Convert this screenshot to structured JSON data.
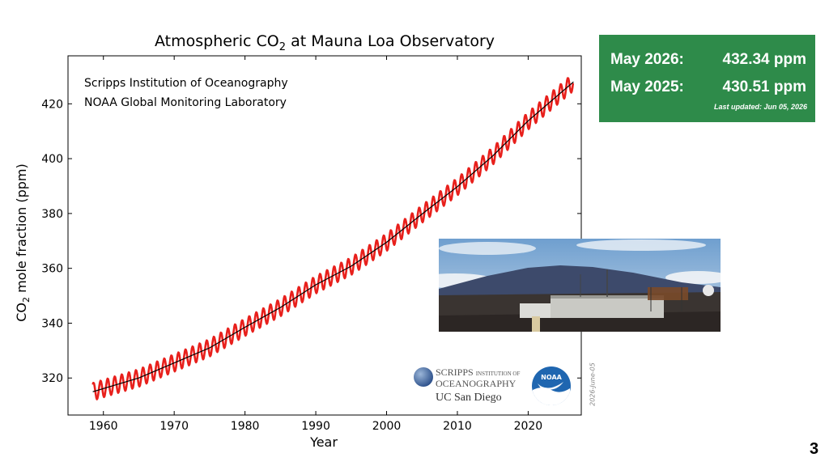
{
  "slide": {
    "page_number": "3"
  },
  "chart_data": {
    "type": "line",
    "title_prefix": "Atmospheric CO",
    "title_sub": "2",
    "title_suffix": " at Mauna Loa Observatory",
    "ylabel_prefix": "CO",
    "ylabel_sub": "2",
    "ylabel_suffix": " mole fraction (ppm)",
    "xlabel": "Year",
    "xlim": [
      1955,
      2027.5
    ],
    "ylim": [
      306.5,
      437.5
    ],
    "x_ticks": [
      1960,
      1970,
      1980,
      1990,
      2000,
      2010,
      2020
    ],
    "y_ticks": [
      320,
      340,
      360,
      380,
      400,
      420
    ],
    "annotations": [
      "Scripps Institution of Oceanography",
      "NOAA Global Monitoring Laboratory"
    ],
    "date_stamp": "2026-June-05",
    "series": [
      {
        "color": "#e8201c",
        "description_kind": "monthly",
        "trend_points": [
          [
            1958.5,
            315.0
          ],
          [
            1965,
            320.0
          ],
          [
            1970,
            325.5
          ],
          [
            1975,
            331.0
          ],
          [
            1980,
            338.5
          ],
          [
            1985,
            345.7
          ],
          [
            1990,
            354.0
          ],
          [
            1995,
            360.8
          ],
          [
            2000,
            369.5
          ],
          [
            2005,
            379.8
          ],
          [
            2010,
            389.8
          ],
          [
            2015,
            401.0
          ],
          [
            2020,
            413.8
          ],
          [
            2026.4,
            428.0
          ]
        ],
        "seasonal_amplitude": 3.2
      },
      {
        "color": "#000000",
        "description_kind": "trend",
        "points": [
          [
            1958.5,
            315.0
          ],
          [
            1965,
            320.0
          ],
          [
            1970,
            325.5
          ],
          [
            1975,
            331.0
          ],
          [
            1980,
            338.5
          ],
          [
            1985,
            345.7
          ],
          [
            1990,
            354.0
          ],
          [
            1995,
            360.8
          ],
          [
            2000,
            369.5
          ],
          [
            2005,
            379.8
          ],
          [
            2010,
            389.8
          ],
          [
            2015,
            401.0
          ],
          [
            2020,
            413.8
          ],
          [
            2026.4,
            428.0
          ]
        ]
      }
    ]
  },
  "stats_box": {
    "row1_label": "May 2026:",
    "row1_value": "432.34 ppm",
    "row2_label": "May 2025:",
    "row2_value": "430.51 ppm",
    "updated": "Last updated: Jun 05, 2026",
    "background": "#2e8b4a"
  },
  "logos": {
    "scripps_line1": "SCRIPPS",
    "scripps_small": "INSTITUTION OF",
    "scripps_line2": "OCEANOGRAPHY",
    "ucsd": "UC San Diego",
    "noaa": "NOAA"
  }
}
